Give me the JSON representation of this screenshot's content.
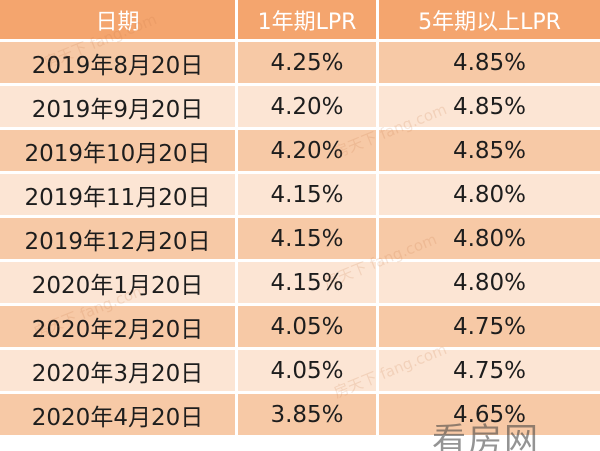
{
  "table": {
    "headers": [
      "日期",
      "1年期LPR",
      "5年期以上LPR"
    ],
    "rows": [
      {
        "date": "2019年8月20日",
        "lpr1": "4.25%",
        "lpr5": "4.85%"
      },
      {
        "date": "2019年9月20日",
        "lpr1": "4.20%",
        "lpr5": "4.85%"
      },
      {
        "date": "2019年10月20日",
        "lpr1": "4.20%",
        "lpr5": "4.85%"
      },
      {
        "date": "2019年11月20日",
        "lpr1": "4.15%",
        "lpr5": "4.80%"
      },
      {
        "date": "2019年12月20日",
        "lpr1": "4.15%",
        "lpr5": "4.80%"
      },
      {
        "date": "2020年1月20日",
        "lpr1": "4.15%",
        "lpr5": "4.80%"
      },
      {
        "date": "2020年2月20日",
        "lpr1": "4.05%",
        "lpr5": "4.75%"
      },
      {
        "date": "2020年3月20日",
        "lpr1": "4.05%",
        "lpr5": "4.75%"
      },
      {
        "date": "2020年4月20日",
        "lpr1": "3.85%",
        "lpr5": "4.65%"
      }
    ]
  },
  "watermark": {
    "stamp": "看房网",
    "repeat": "房天下 fang.com"
  },
  "colors": {
    "header_bg": "#f4a56e",
    "row_dark": "#f7c9a6",
    "row_light": "#fce5d4"
  }
}
